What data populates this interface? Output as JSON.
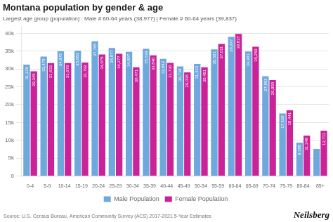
{
  "chart_data": {
    "type": "bar",
    "title": "Montana population by gender & age",
    "subtitle": "Largest age group (population) : Male # 60-64 years (38,977) | Female # 60-64 years (39,837)",
    "annotations": [
      "Source: U.S. Census Bureau, American Community Survey (ACS) 2017-2021 5-Year Estimates",
      "Neilsberg"
    ],
    "categories": [
      "0-4",
      "5-9",
      "10-14",
      "15-19",
      "20-24",
      "25-29",
      "30-34",
      "35-39",
      "40-44",
      "45-49",
      "50-54",
      "55-59",
      "60-64",
      "65-69",
      "70-74",
      "75-79",
      "80-84",
      "85+"
    ],
    "series": [
      {
        "name": "Male Population",
        "color": "#6fa8dc",
        "values": [
          31226,
          33478,
          34975,
          35083,
          37765,
          35877,
          34807,
          35639,
          32842,
          30738,
          31423,
          35501,
          38977,
          34901,
          27962,
          17538,
          9388,
          7573
        ],
        "value_labels": [
          "31,226",
          "33,478",
          "34,975",
          "35,083",
          "37,765",
          "35,877",
          "34,807",
          "35,639",
          "32,842",
          "30,738",
          "31,423",
          "35,501",
          "38,977",
          "34,901",
          "27,962",
          "17,538",
          "9,388",
          null
        ]
      },
      {
        "name": "Female Population",
        "color": "#cc2299",
        "values": [
          29345,
          31633,
          31679,
          31792,
          34075,
          34277,
          30471,
          33840,
          31730,
          29036,
          30481,
          37011,
          39837,
          36250,
          26900,
          18441,
          11349,
          12711
        ],
        "value_labels": [
          "29,345",
          "31,633",
          "31,679",
          "31,792",
          "34,075",
          "34,277",
          "30,471",
          "33,840",
          "31,730",
          "29,036",
          "30,481",
          "37,011",
          "39,837",
          "36,250",
          "26,900",
          "18,441",
          "11,349",
          "12,711"
        ]
      }
    ],
    "ylim": [
      0,
      42000
    ],
    "yticks": [
      0,
      {
        "value": 5000,
        "label": "5k"
      },
      {
        "value": 10000,
        "label": "10k"
      },
      {
        "value": 15000,
        "label": "15k"
      },
      {
        "value": 20000,
        "label": "20k"
      },
      {
        "value": 25000,
        "label": "25k"
      },
      {
        "value": 30000,
        "label": "30k"
      },
      {
        "value": 35000,
        "label": "35k"
      },
      {
        "value": 40000,
        "label": "40k"
      }
    ],
    "grid": true,
    "legend": "bottom",
    "data_labels": true
  }
}
